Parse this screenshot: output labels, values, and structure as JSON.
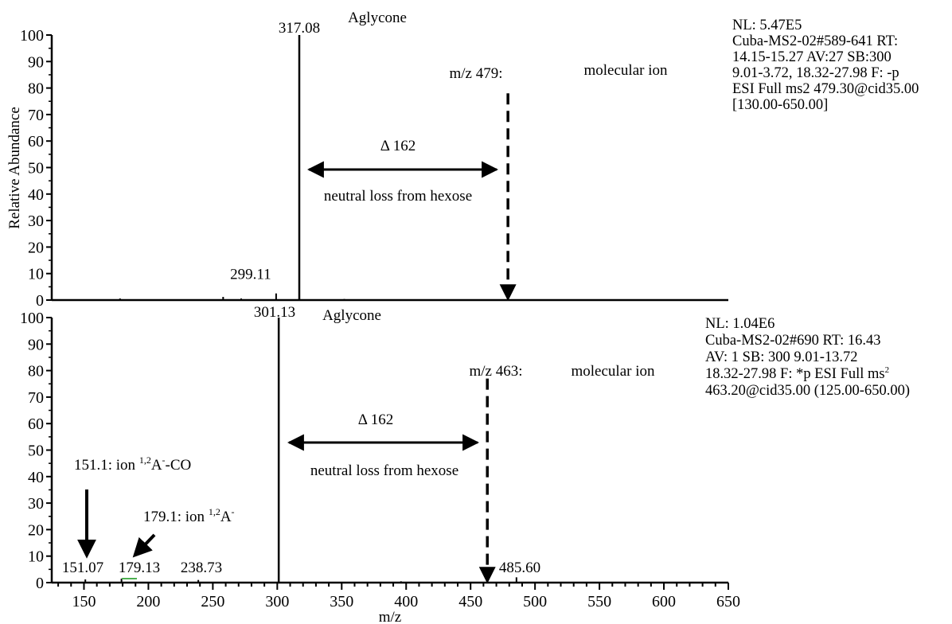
{
  "chart_data": [
    {
      "type": "line",
      "panel": "top",
      "ylabel": "Relative Abundance",
      "ylim": [
        0,
        100
      ],
      "yticks": [
        "0",
        "10",
        "20",
        "30",
        "40",
        "50",
        "60",
        "70",
        "80",
        "90",
        "100"
      ],
      "xlim": [
        125,
        650
      ],
      "grid": false,
      "peaks": [
        {
          "mz": 178,
          "abundance": 0.6
        },
        {
          "mz": 258,
          "abundance": 1.2
        },
        {
          "mz": 272,
          "abundance": 0.6
        },
        {
          "mz": 299.11,
          "abundance": 2.5,
          "label": "299.11"
        },
        {
          "mz": 317.08,
          "abundance": 100,
          "label": "317.08"
        },
        {
          "mz": 352,
          "abundance": 0.4
        }
      ],
      "molecular_ion": {
        "mz": 479,
        "abundance": 78,
        "label": "m/z 479:",
        "name": "molecular  ion"
      },
      "peak_title": "Aglycone",
      "delta_label": "Δ 162",
      "loss_label": "neutral loss from hexose",
      "info": [
        "NL: 5.47E5",
        "Cuba-MS2-02#589-641 RT:",
        "14.15-15.27 AV:27 SB:300",
        "9.01-3.72, 18.32-27.98 F: -p",
        "ESI Full ms2 479.30@cid35.00",
        "[130.00-650.00]"
      ]
    },
    {
      "type": "line",
      "panel": "bottom",
      "xlabel": "m/z",
      "ylim": [
        0,
        100
      ],
      "yticks": [
        "0",
        "10",
        "20",
        "30",
        "40",
        "50",
        "60",
        "70",
        "80",
        "90",
        "100"
      ],
      "xlim": [
        125,
        650
      ],
      "xticks": [
        "150",
        "200",
        "250",
        "300",
        "350",
        "400",
        "450",
        "500",
        "550",
        "600",
        "650"
      ],
      "grid": false,
      "peaks": [
        {
          "mz": 151.07,
          "abundance": 1.2,
          "label": "151.07"
        },
        {
          "mz": 179.13,
          "abundance": 1.5,
          "label": "179.13"
        },
        {
          "mz": 238.73,
          "abundance": 1.0,
          "label": "238.73"
        },
        {
          "mz": 301.13,
          "abundance": 100,
          "label": "301.13"
        },
        {
          "mz": 396,
          "abundance": 0.5
        },
        {
          "mz": 485.6,
          "abundance": 2.0,
          "label": "485.60"
        }
      ],
      "molecular_ion": {
        "mz": 463,
        "abundance": 77,
        "label": "m/z 463:",
        "name": "molecular  ion"
      },
      "peak_title": "Aglycone",
      "delta_label": "Δ 162",
      "loss_label": "neutral loss from hexose",
      "fragment_annotations": [
        {
          "mz": 151.1,
          "text": "151.1: ion ",
          "sup": "1,2",
          "suffix": "A",
          "tail_sup": "-",
          "tail": "-CO"
        },
        {
          "mz": 179.1,
          "text": "179.1: ion ",
          "sup": "1,2",
          "suffix": "A",
          "tail_sup": "-",
          "tail": ""
        }
      ],
      "info": [
        "NL: 1.04E6",
        "Cuba-MS2-02#690 RT: 16.43",
        "AV: 1 SB: 300 9.01-13.72",
        "18.32-27.98 F: *p ESI Full ms",
        "463.20@cid35.00 (125.00-650.00)"
      ],
      "info_sup": "2"
    }
  ]
}
